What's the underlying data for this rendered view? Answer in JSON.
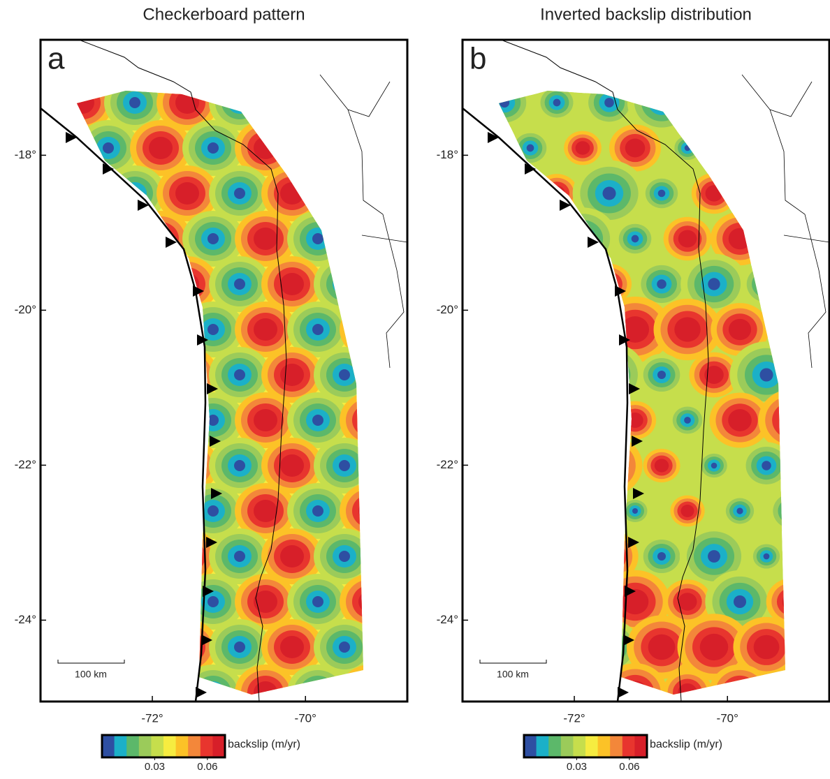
{
  "panels": [
    {
      "label": "a",
      "title": "Checkerboard pattern",
      "xlim": [
        -73.46,
        -68.67
      ],
      "ylim": [
        -25.05,
        -16.51
      ],
      "xticks": [
        {
          "value": -72,
          "label": "-72°"
        },
        {
          "value": -70,
          "label": "-70°"
        }
      ],
      "yticks": [
        {
          "value": -18,
          "label": "-18°"
        },
        {
          "value": -20,
          "label": "-20°"
        },
        {
          "value": -22,
          "label": "-22°"
        },
        {
          "value": -24,
          "label": "-24°"
        }
      ],
      "scale_bar": "100 km",
      "colorbar": {
        "label": "backslip (m/yr)",
        "lim": [
          0,
          0.07
        ],
        "ticks": [
          0.03,
          0.06
        ],
        "colors": [
          "#2e4fa2",
          "#1bb0c8",
          "#5cb86a",
          "#9bcb5a",
          "#c6de4c",
          "#f6ec40",
          "#fcc227",
          "#f3873a",
          "#e8352e",
          "#d71f29"
        ]
      }
    },
    {
      "label": "b",
      "title": "Inverted backslip distribution",
      "xlim": [
        -73.46,
        -68.67
      ],
      "ylim": [
        -25.05,
        -16.51
      ],
      "xticks": [
        {
          "value": -72,
          "label": "-72°"
        },
        {
          "value": -70,
          "label": "-70°"
        }
      ],
      "yticks": [
        {
          "value": -18,
          "label": "-18°"
        },
        {
          "value": -20,
          "label": "-20°"
        },
        {
          "value": -22,
          "label": "-22°"
        },
        {
          "value": -24,
          "label": "-24°"
        }
      ],
      "scale_bar": "100 km",
      "colorbar": {
        "label": "backslip (m/yr)",
        "lim": [
          0,
          0.07
        ],
        "ticks": [
          0.03,
          0.06
        ],
        "colors": [
          "#2e4fa2",
          "#1bb0c8",
          "#5cb86a",
          "#9bcb5a",
          "#c6de4c",
          "#f6ec40",
          "#fcc227",
          "#f3873a",
          "#e8352e",
          "#d71f29"
        ]
      }
    }
  ]
}
